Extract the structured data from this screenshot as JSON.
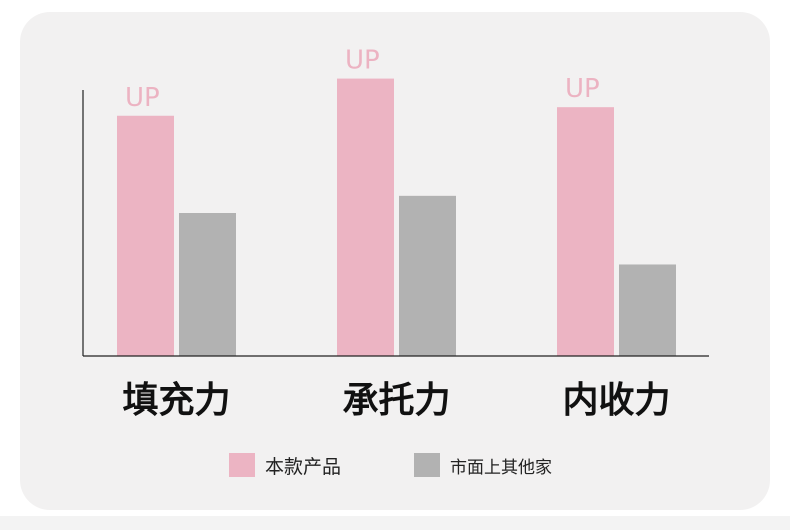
{
  "chart_data": {
    "type": "bar",
    "categories": [
      "填充力",
      "承托力",
      "内收力"
    ],
    "series": [
      {
        "name": "本款产品",
        "values": [
          84,
          97,
          87
        ],
        "color": "#ecb4c3",
        "annotation": "UP"
      },
      {
        "name": "市面上其他家",
        "values": [
          50,
          56,
          32
        ],
        "color": "#b2b2b2"
      }
    ],
    "ylim": [
      0,
      100
    ],
    "grid": false,
    "legend_position": "bottom",
    "axis_color": "#222222"
  },
  "legend": {
    "items": [
      {
        "label": "本款产品",
        "color": "#ecb4c3"
      },
      {
        "label": "市面上其他家",
        "color": "#b2b2b2"
      }
    ]
  }
}
